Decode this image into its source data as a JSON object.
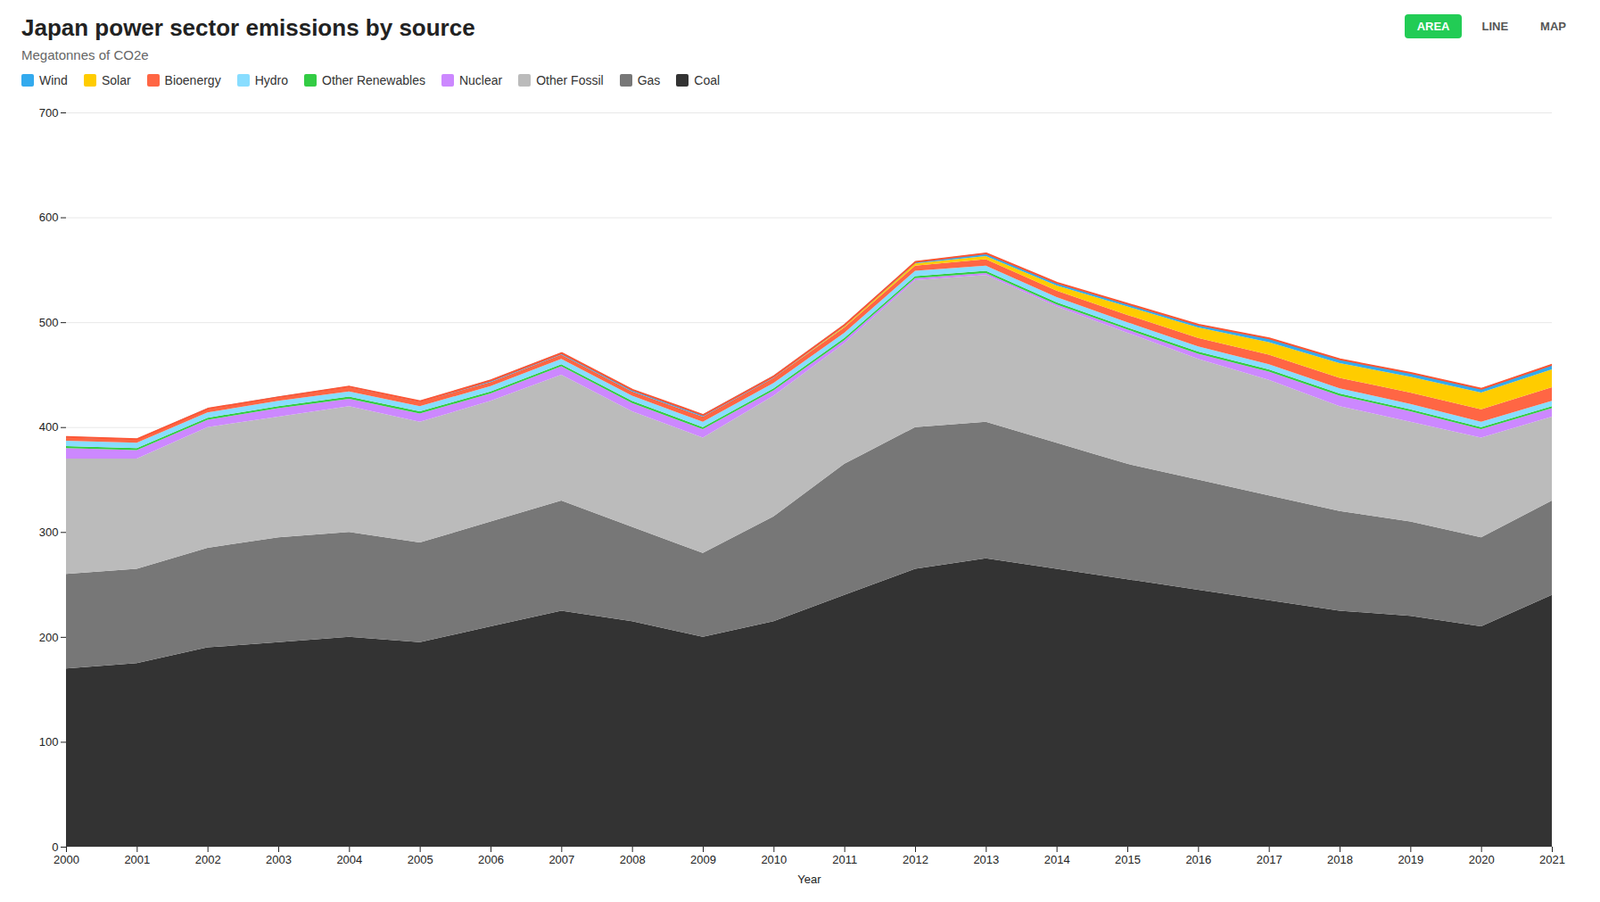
{
  "chart_data": {
    "type": "area",
    "stacked": true,
    "title": "Japan power sector emissions by source",
    "subtitle": "Megatonnes of CO2e",
    "xlabel": "Year",
    "x": [
      2000,
      2001,
      2002,
      2003,
      2004,
      2005,
      2006,
      2007,
      2008,
      2009,
      2010,
      2011,
      2012,
      2013,
      2014,
      2015,
      2016,
      2017,
      2018,
      2019,
      2020,
      2021
    ],
    "series": [
      {
        "name": "Coal",
        "color": "#333333",
        "values": [
          170,
          175,
          190,
          195,
          200,
          195,
          210,
          225,
          215,
          200,
          215,
          240,
          265,
          275,
          265,
          255,
          245,
          235,
          225,
          220,
          210,
          240
        ]
      },
      {
        "name": "Gas",
        "color": "#777777",
        "values": [
          90,
          90,
          95,
          100,
          100,
          95,
          100,
          105,
          90,
          80,
          100,
          125,
          135,
          130,
          120,
          110,
          105,
          100,
          95,
          90,
          85,
          90
        ]
      },
      {
        "name": "Other Fossil",
        "color": "#bbbbbb",
        "values": [
          110,
          105,
          115,
          115,
          120,
          115,
          115,
          120,
          110,
          110,
          115,
          115,
          140,
          140,
          130,
          125,
          115,
          110,
          100,
          95,
          95,
          80
        ]
      },
      {
        "name": "Nuclear",
        "color": "#cc88ff",
        "values": [
          10,
          8,
          7,
          8,
          7,
          8,
          7,
          8,
          8,
          8,
          5,
          3,
          2,
          2,
          2,
          3,
          5,
          8,
          10,
          10,
          8,
          8
        ]
      },
      {
        "name": "Other Renewables",
        "color": "#33cc44",
        "values": [
          2,
          2,
          2,
          2,
          2,
          2,
          2,
          2,
          2,
          2,
          2,
          2,
          2,
          2,
          2,
          2,
          2,
          2,
          2,
          2,
          2,
          2
        ]
      },
      {
        "name": "Hydro",
        "color": "#88ddff",
        "values": [
          5,
          5,
          5,
          5,
          5,
          5,
          5,
          5,
          5,
          5,
          5,
          5,
          5,
          5,
          5,
          5,
          5,
          5,
          5,
          5,
          5,
          5
        ]
      },
      {
        "name": "Bioenergy",
        "color": "#ff6644",
        "values": [
          3,
          3,
          3,
          3,
          4,
          4,
          4,
          4,
          4,
          5,
          5,
          5,
          5,
          6,
          6,
          7,
          8,
          9,
          10,
          11,
          12,
          13
        ]
      },
      {
        "name": "Solar",
        "color": "#ffcc00",
        "values": [
          0,
          0,
          0,
          0,
          0,
          0,
          0,
          0,
          0,
          0,
          0,
          1,
          2,
          3,
          5,
          8,
          10,
          12,
          14,
          15,
          16,
          17
        ]
      },
      {
        "name": "Wind",
        "color": "#33aaee",
        "values": [
          1,
          1,
          1,
          1,
          1,
          1,
          2,
          2,
          2,
          2,
          2,
          2,
          2,
          3,
          3,
          3,
          3,
          4,
          4,
          4,
          4,
          5
        ]
      }
    ],
    "total_line": {
      "color": "#ff5533",
      "values": [
        391,
        389,
        418,
        429,
        439,
        425,
        445,
        471,
        436,
        412,
        449,
        498,
        558,
        566,
        538,
        518,
        498,
        485,
        465,
        452,
        437,
        460
      ]
    },
    "xlim": [
      2000,
      2021
    ],
    "xticks": [
      2000,
      2001,
      2002,
      2003,
      2004,
      2005,
      2006,
      2007,
      2008,
      2009,
      2010,
      2011,
      2012,
      2013,
      2014,
      2015,
      2016,
      2017,
      2018,
      2019,
      2020,
      2021
    ],
    "ylim": [
      0,
      700
    ],
    "yticks": [
      0,
      100,
      200,
      300,
      400,
      500,
      600,
      700
    ],
    "grid": true,
    "legend": "upper left",
    "annotations": [
      "AREA",
      "LINE",
      "MAP"
    ]
  }
}
